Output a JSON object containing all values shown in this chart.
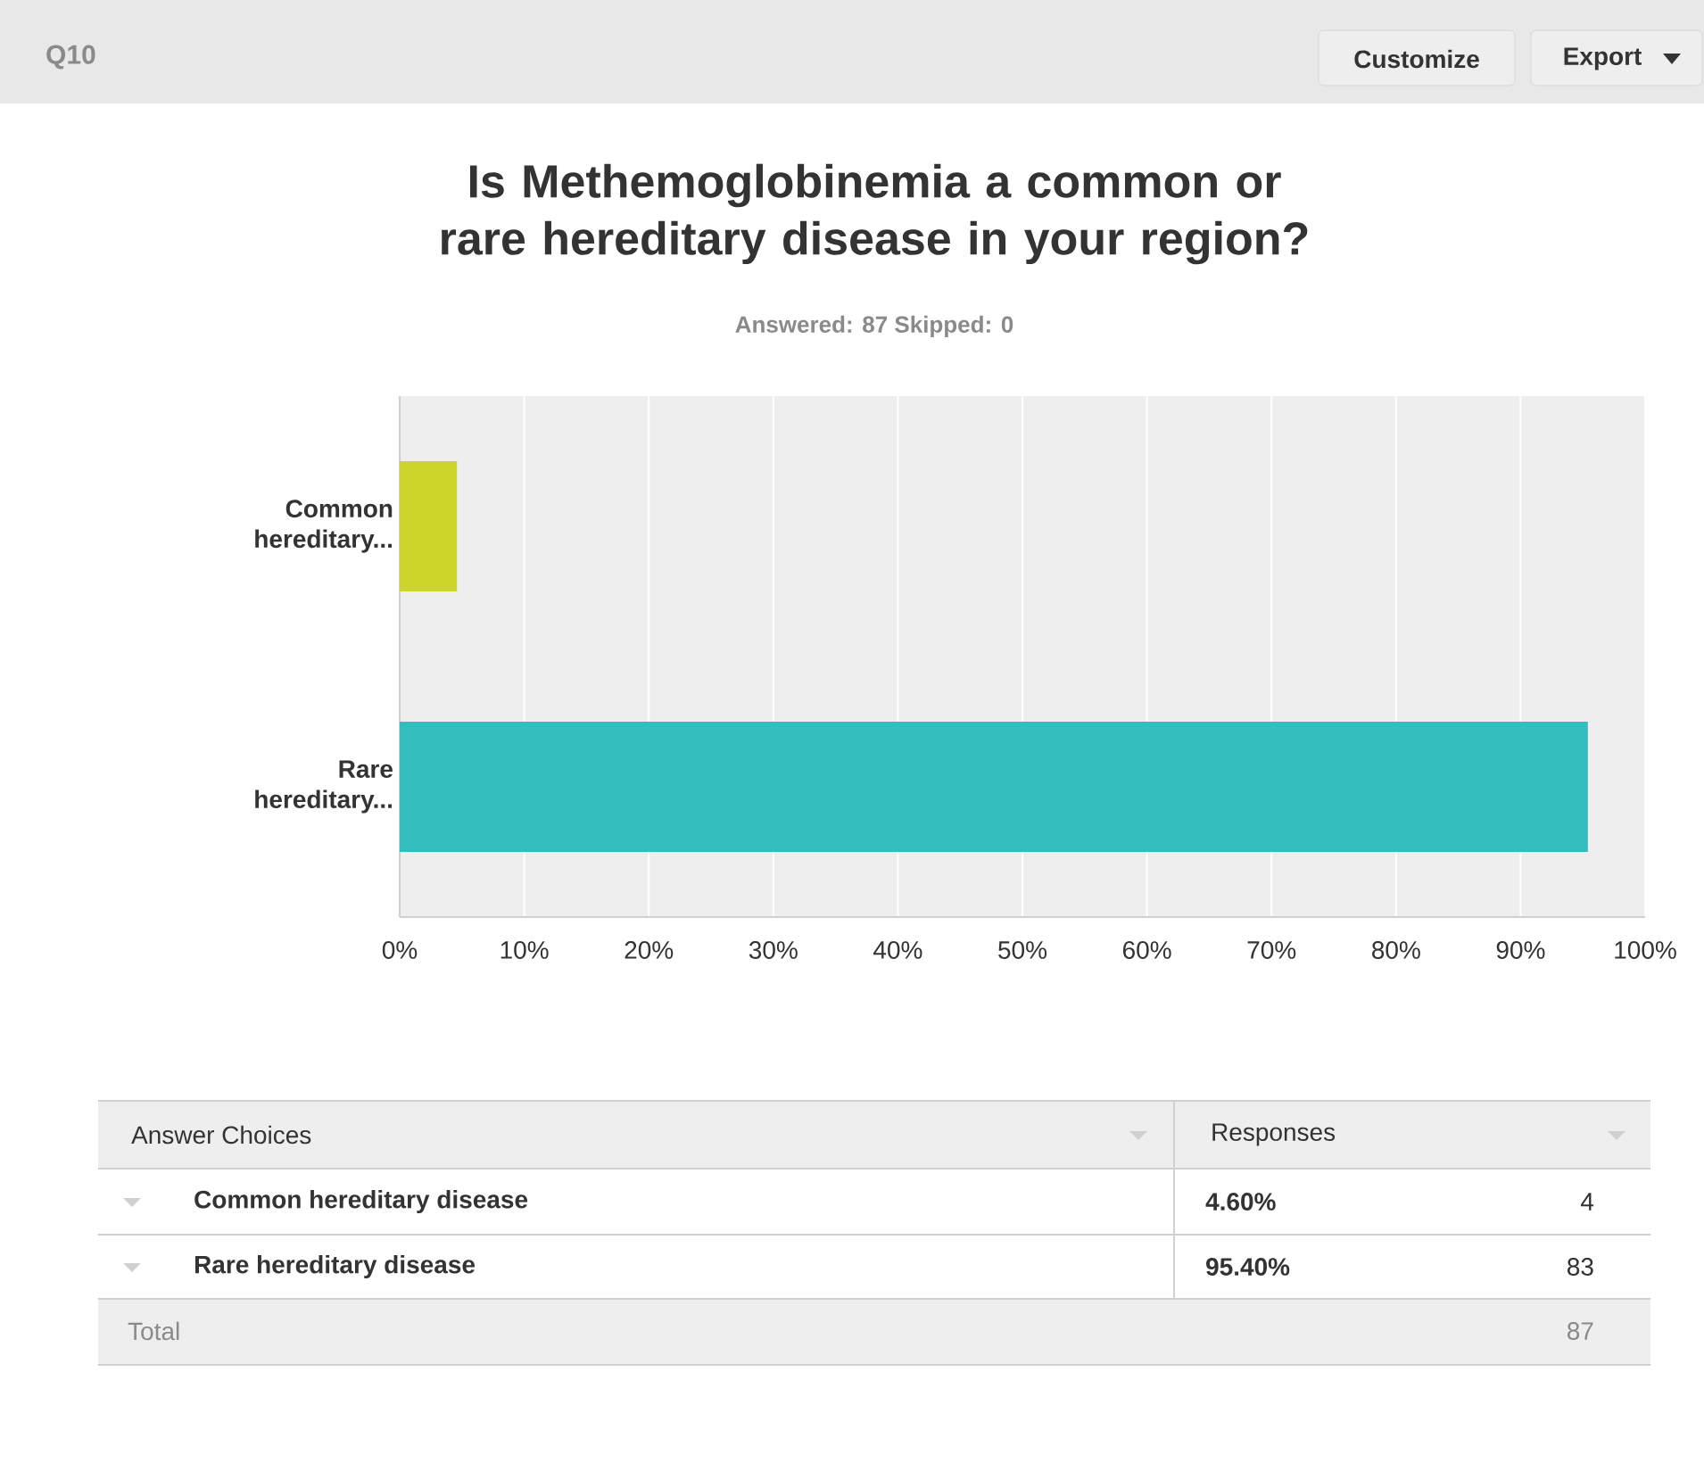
{
  "chart_data": {
    "type": "bar",
    "orientation": "horizontal",
    "title": "Is Methemoglobinemia a common or rare hereditary disease in your region?",
    "subtitle": "Answered: 87    Skipped: 0",
    "categories": [
      "Common hereditary...",
      "Rare hereditary..."
    ],
    "values": [
      4.6,
      95.4
    ],
    "colors": [
      "#cdd52a",
      "#33bdbe"
    ],
    "xlim": [
      0,
      100
    ],
    "xticks": [
      {
        "value": 0,
        "label": "0%"
      },
      {
        "value": 10,
        "label": "10%"
      },
      {
        "value": 20,
        "label": "20%"
      },
      {
        "value": 30,
        "label": "30%"
      },
      {
        "value": 40,
        "label": "40%"
      },
      {
        "value": 50,
        "label": "50%"
      },
      {
        "value": 60,
        "label": "60%"
      },
      {
        "value": 70,
        "label": "70%"
      },
      {
        "value": 80,
        "label": "80%"
      },
      {
        "value": 90,
        "label": "90%"
      },
      {
        "value": 100,
        "label": "100%"
      }
    ],
    "grid": "x",
    "annotations": [
      "Q10",
      "Customize",
      "Export",
      "Answer Choices",
      "Responses",
      "Common hereditary disease",
      "4.60%",
      "4",
      "Rare hereditary disease",
      "95.40%",
      "83",
      "Total",
      "87"
    ]
  }
}
